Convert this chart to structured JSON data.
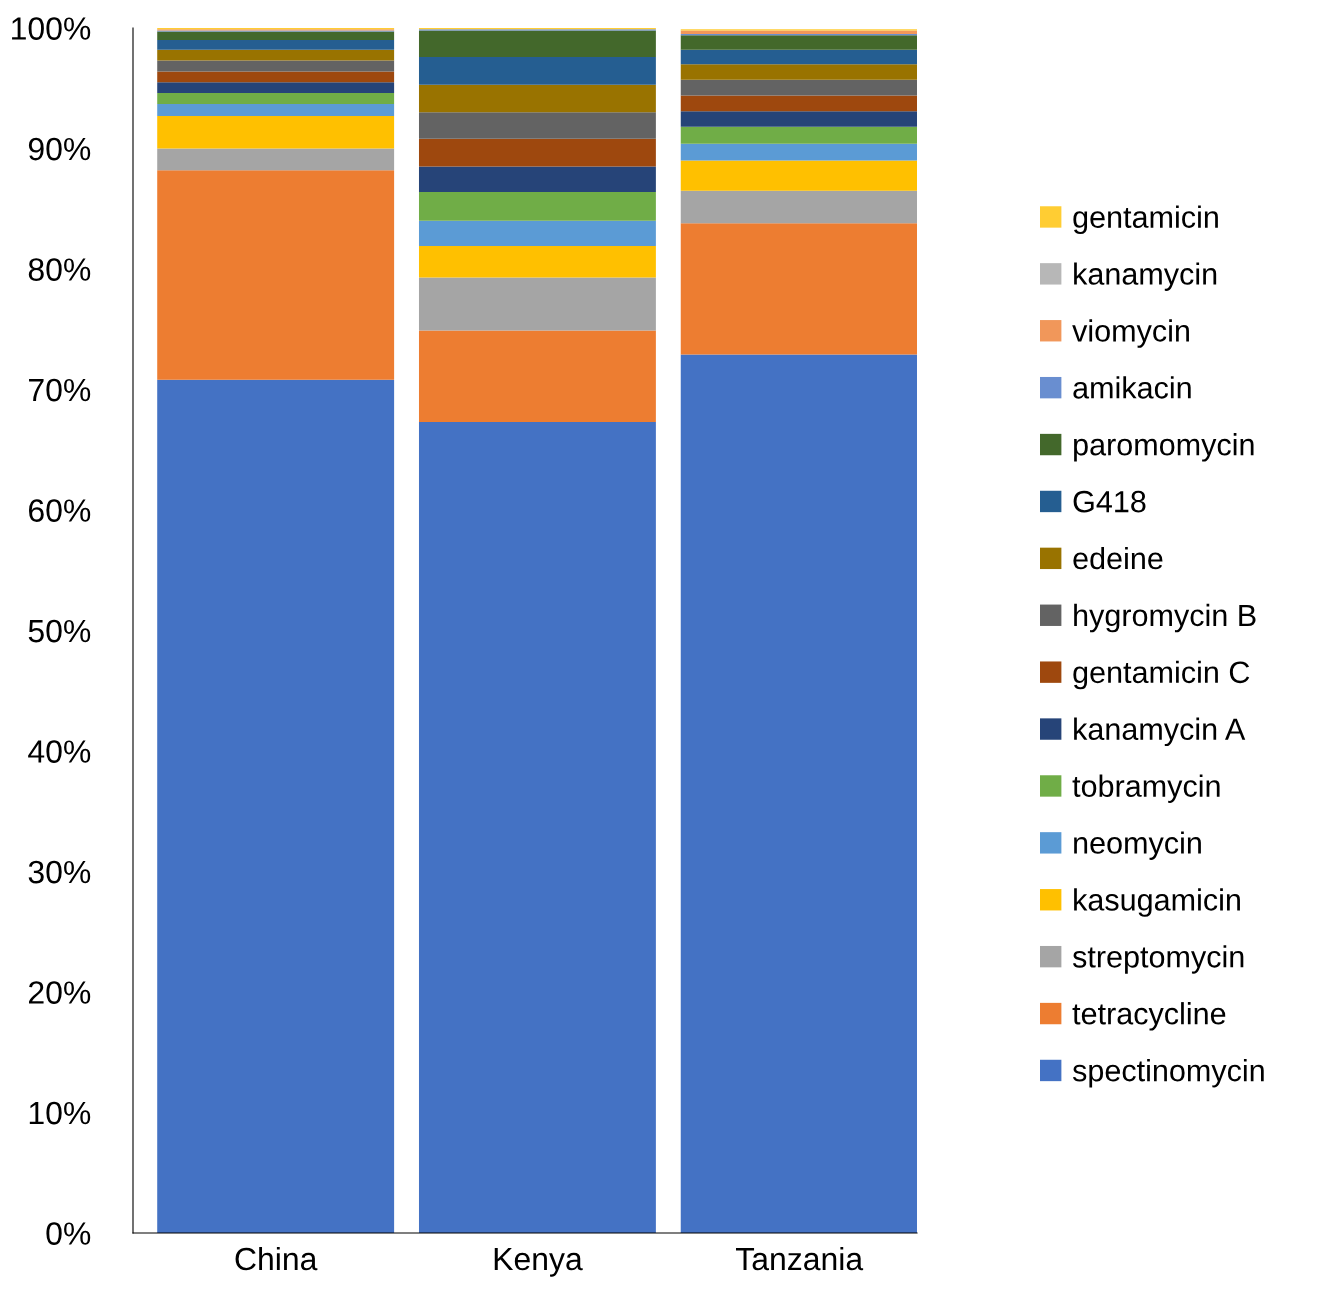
{
  "chart_data": {
    "type": "bar",
    "stacked": true,
    "categories": [
      "China",
      "Kenya",
      "Tanzania"
    ],
    "series": [
      {
        "name": "spectinomycin",
        "color": "#4472c4",
        "values": [
          70.8,
          67.3,
          72.9
        ]
      },
      {
        "name": "tetracycline",
        "color": "#ed7d31",
        "values": [
          17.4,
          7.6,
          10.9
        ]
      },
      {
        "name": "streptomycin",
        "color": "#a5a5a5",
        "values": [
          1.8,
          4.4,
          2.7
        ]
      },
      {
        "name": "kasugamicin",
        "color": "#ffc000",
        "values": [
          2.7,
          2.6,
          2.5
        ]
      },
      {
        "name": "neomycin",
        "color": "#5b9bd5",
        "values": [
          1.0,
          2.1,
          1.4
        ]
      },
      {
        "name": "tobramycin",
        "color": "#70ad47",
        "values": [
          0.9,
          2.4,
          1.4
        ]
      },
      {
        "name": "kanamycin A",
        "color": "#264478",
        "values": [
          0.9,
          2.1,
          1.3
        ]
      },
      {
        "name": "gentamicin C",
        "color": "#9e480e",
        "values": [
          0.9,
          2.3,
          1.3
        ]
      },
      {
        "name": "hygromycin B",
        "color": "#636363",
        "values": [
          0.9,
          2.2,
          1.3
        ]
      },
      {
        "name": "edeine",
        "color": "#997300",
        "values": [
          0.9,
          2.3,
          1.3
        ]
      },
      {
        "name": "G418",
        "color": "#255e91",
        "values": [
          0.8,
          2.3,
          1.2
        ]
      },
      {
        "name": "paromomycin",
        "color": "#43682b",
        "values": [
          0.7,
          2.2,
          1.2
        ]
      },
      {
        "name": "amikacin",
        "color": "#698ed0",
        "values": [
          0.1,
          0.1,
          0.1
        ]
      },
      {
        "name": "viomycin",
        "color": "#f1975a",
        "values": [
          0.1,
          null,
          0.3
        ]
      },
      {
        "name": "kanamycin",
        "color": "#b7b7b7",
        "values": [
          null,
          null,
          null
        ]
      },
      {
        "name": "gentamicin",
        "color": "#ffcd33",
        "values": [
          0.1,
          0.1,
          0.1
        ]
      }
    ],
    "ylim": [
      0,
      100
    ],
    "yticks": [
      {
        "value": 0,
        "label": "0%"
      },
      {
        "value": 10,
        "label": "10%"
      },
      {
        "value": 20,
        "label": "20%"
      },
      {
        "value": 30,
        "label": "30%"
      },
      {
        "value": 40,
        "label": "40%"
      },
      {
        "value": 50,
        "label": "50%"
      },
      {
        "value": 60,
        "label": "60%"
      },
      {
        "value": 70,
        "label": "70%"
      },
      {
        "value": 80,
        "label": "80%"
      },
      {
        "value": 90,
        "label": "90%"
      },
      {
        "value": 100,
        "label": "100%"
      }
    ],
    "grid": false,
    "legend": "right"
  }
}
